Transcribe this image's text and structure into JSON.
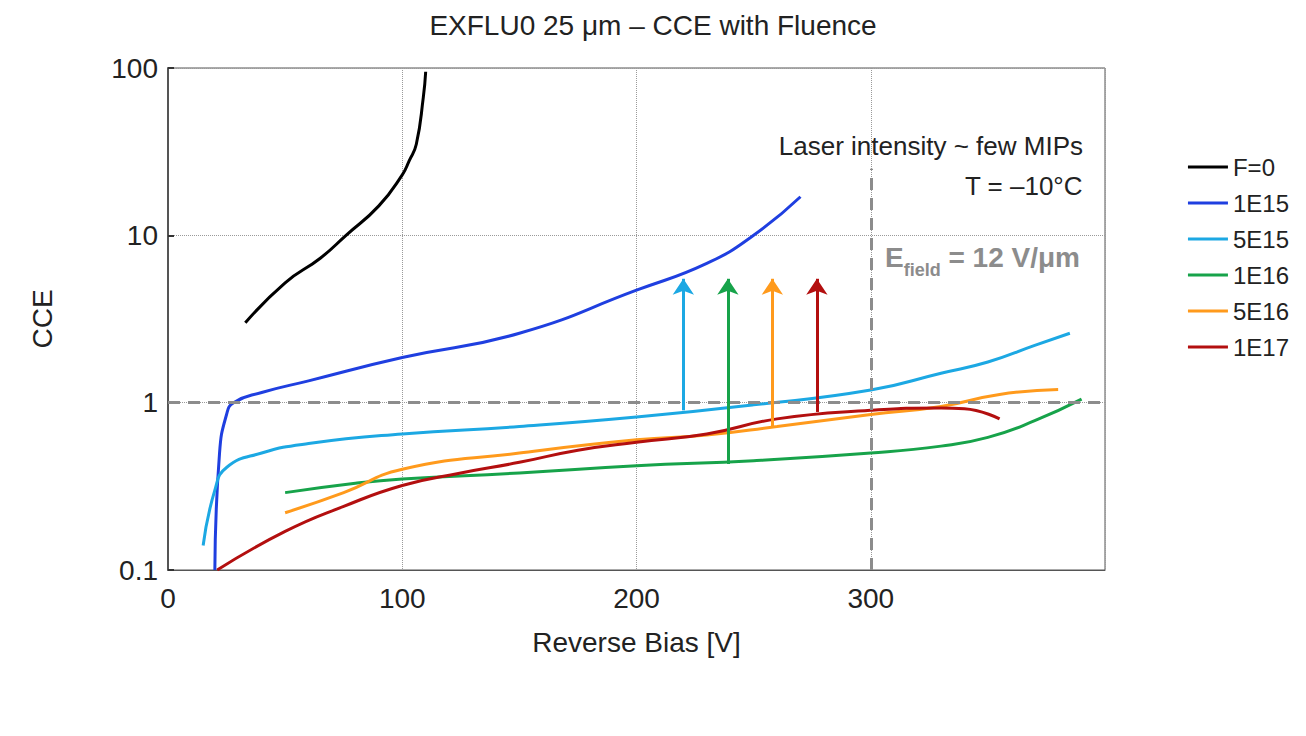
{
  "chart_data": {
    "type": "line",
    "title": "EXFLU0 25 μm – CCE with Fluence",
    "x_label": "Reverse Bias [V]",
    "y_label": "CCE",
    "xlim": [
      0,
      400
    ],
    "xticks": [
      0,
      100,
      200,
      300
    ],
    "ylim": [
      0.1,
      100
    ],
    "yticks": [
      0.1,
      1,
      10,
      100
    ],
    "log": "y",
    "grid": true,
    "legend": "right",
    "annotations": [
      "Laser intensity ~ few MIPs",
      "T = –10°C"
    ],
    "field_label": {
      "text": "E",
      "subscript": "field",
      "rest": " = 12 V/μm"
    },
    "reference_lines": [
      {
        "y": 1
      },
      {
        "x": 300,
        "from": 0.1,
        "to": 25
      }
    ],
    "arrows": [
      {
        "x": 220,
        "from": 0.9,
        "to": 5.5,
        "color": "#1ca8e3"
      },
      {
        "x": 239,
        "from": 0.43,
        "to": 5.5,
        "color": "#17a34a"
      },
      {
        "x": 258,
        "from": 0.72,
        "to": 5.5,
        "color": "#ff9a1c"
      },
      {
        "x": 277,
        "from": 0.88,
        "to": 5.5,
        "color": "#b30f0f"
      }
    ],
    "series": [
      {
        "name": "F=0",
        "color": "#000000",
        "x": [
          33,
          50,
          65,
          76,
          90,
          100,
          103,
          106,
          109,
          110
        ],
        "values": [
          3.0,
          5.2,
          7.3,
          10,
          15,
          23,
          28,
          35,
          67,
          95
        ]
      },
      {
        "name": "1E15",
        "color": "#1f3fe0",
        "x": [
          20,
          22,
          25,
          28,
          40,
          60,
          100,
          150,
          200,
          230,
          250,
          270
        ],
        "values": [
          0.1,
          0.5,
          0.85,
          1.0,
          1.15,
          1.35,
          1.86,
          2.6,
          4.7,
          6.8,
          10,
          17
        ]
      },
      {
        "name": "5E15",
        "color": "#1ca8e3",
        "x": [
          15,
          20,
          25,
          40,
          60,
          100,
          150,
          200,
          250,
          300,
          330,
          350,
          370,
          385
        ],
        "values": [
          0.14,
          0.3,
          0.41,
          0.5,
          0.57,
          0.65,
          0.72,
          0.82,
          0.97,
          1.19,
          1.5,
          1.75,
          2.2,
          2.6
        ]
      },
      {
        "name": "1E16",
        "color": "#17a34a",
        "x": [
          50,
          80,
          100,
          150,
          200,
          250,
          300,
          330,
          350,
          370,
          390
        ],
        "values": [
          0.29,
          0.33,
          0.35,
          0.38,
          0.42,
          0.45,
          0.5,
          0.55,
          0.62,
          0.78,
          1.05
        ]
      },
      {
        "name": "5E16",
        "color": "#ff9a1c",
        "x": [
          50,
          75,
          100,
          150,
          200,
          230,
          260,
          300,
          330,
          355,
          380
        ],
        "values": [
          0.22,
          0.29,
          0.4,
          0.5,
          0.6,
          0.64,
          0.72,
          0.85,
          0.95,
          1.12,
          1.2
        ]
      },
      {
        "name": "1E17",
        "color": "#b30f0f",
        "x": [
          21,
          50,
          75,
          100,
          125,
          150,
          175,
          200,
          230,
          260,
          300,
          330,
          340,
          355
        ],
        "values": [
          0.1,
          0.17,
          0.24,
          0.32,
          0.38,
          0.44,
          0.52,
          0.58,
          0.65,
          0.8,
          0.9,
          0.93,
          0.92,
          0.8
        ]
      }
    ]
  }
}
